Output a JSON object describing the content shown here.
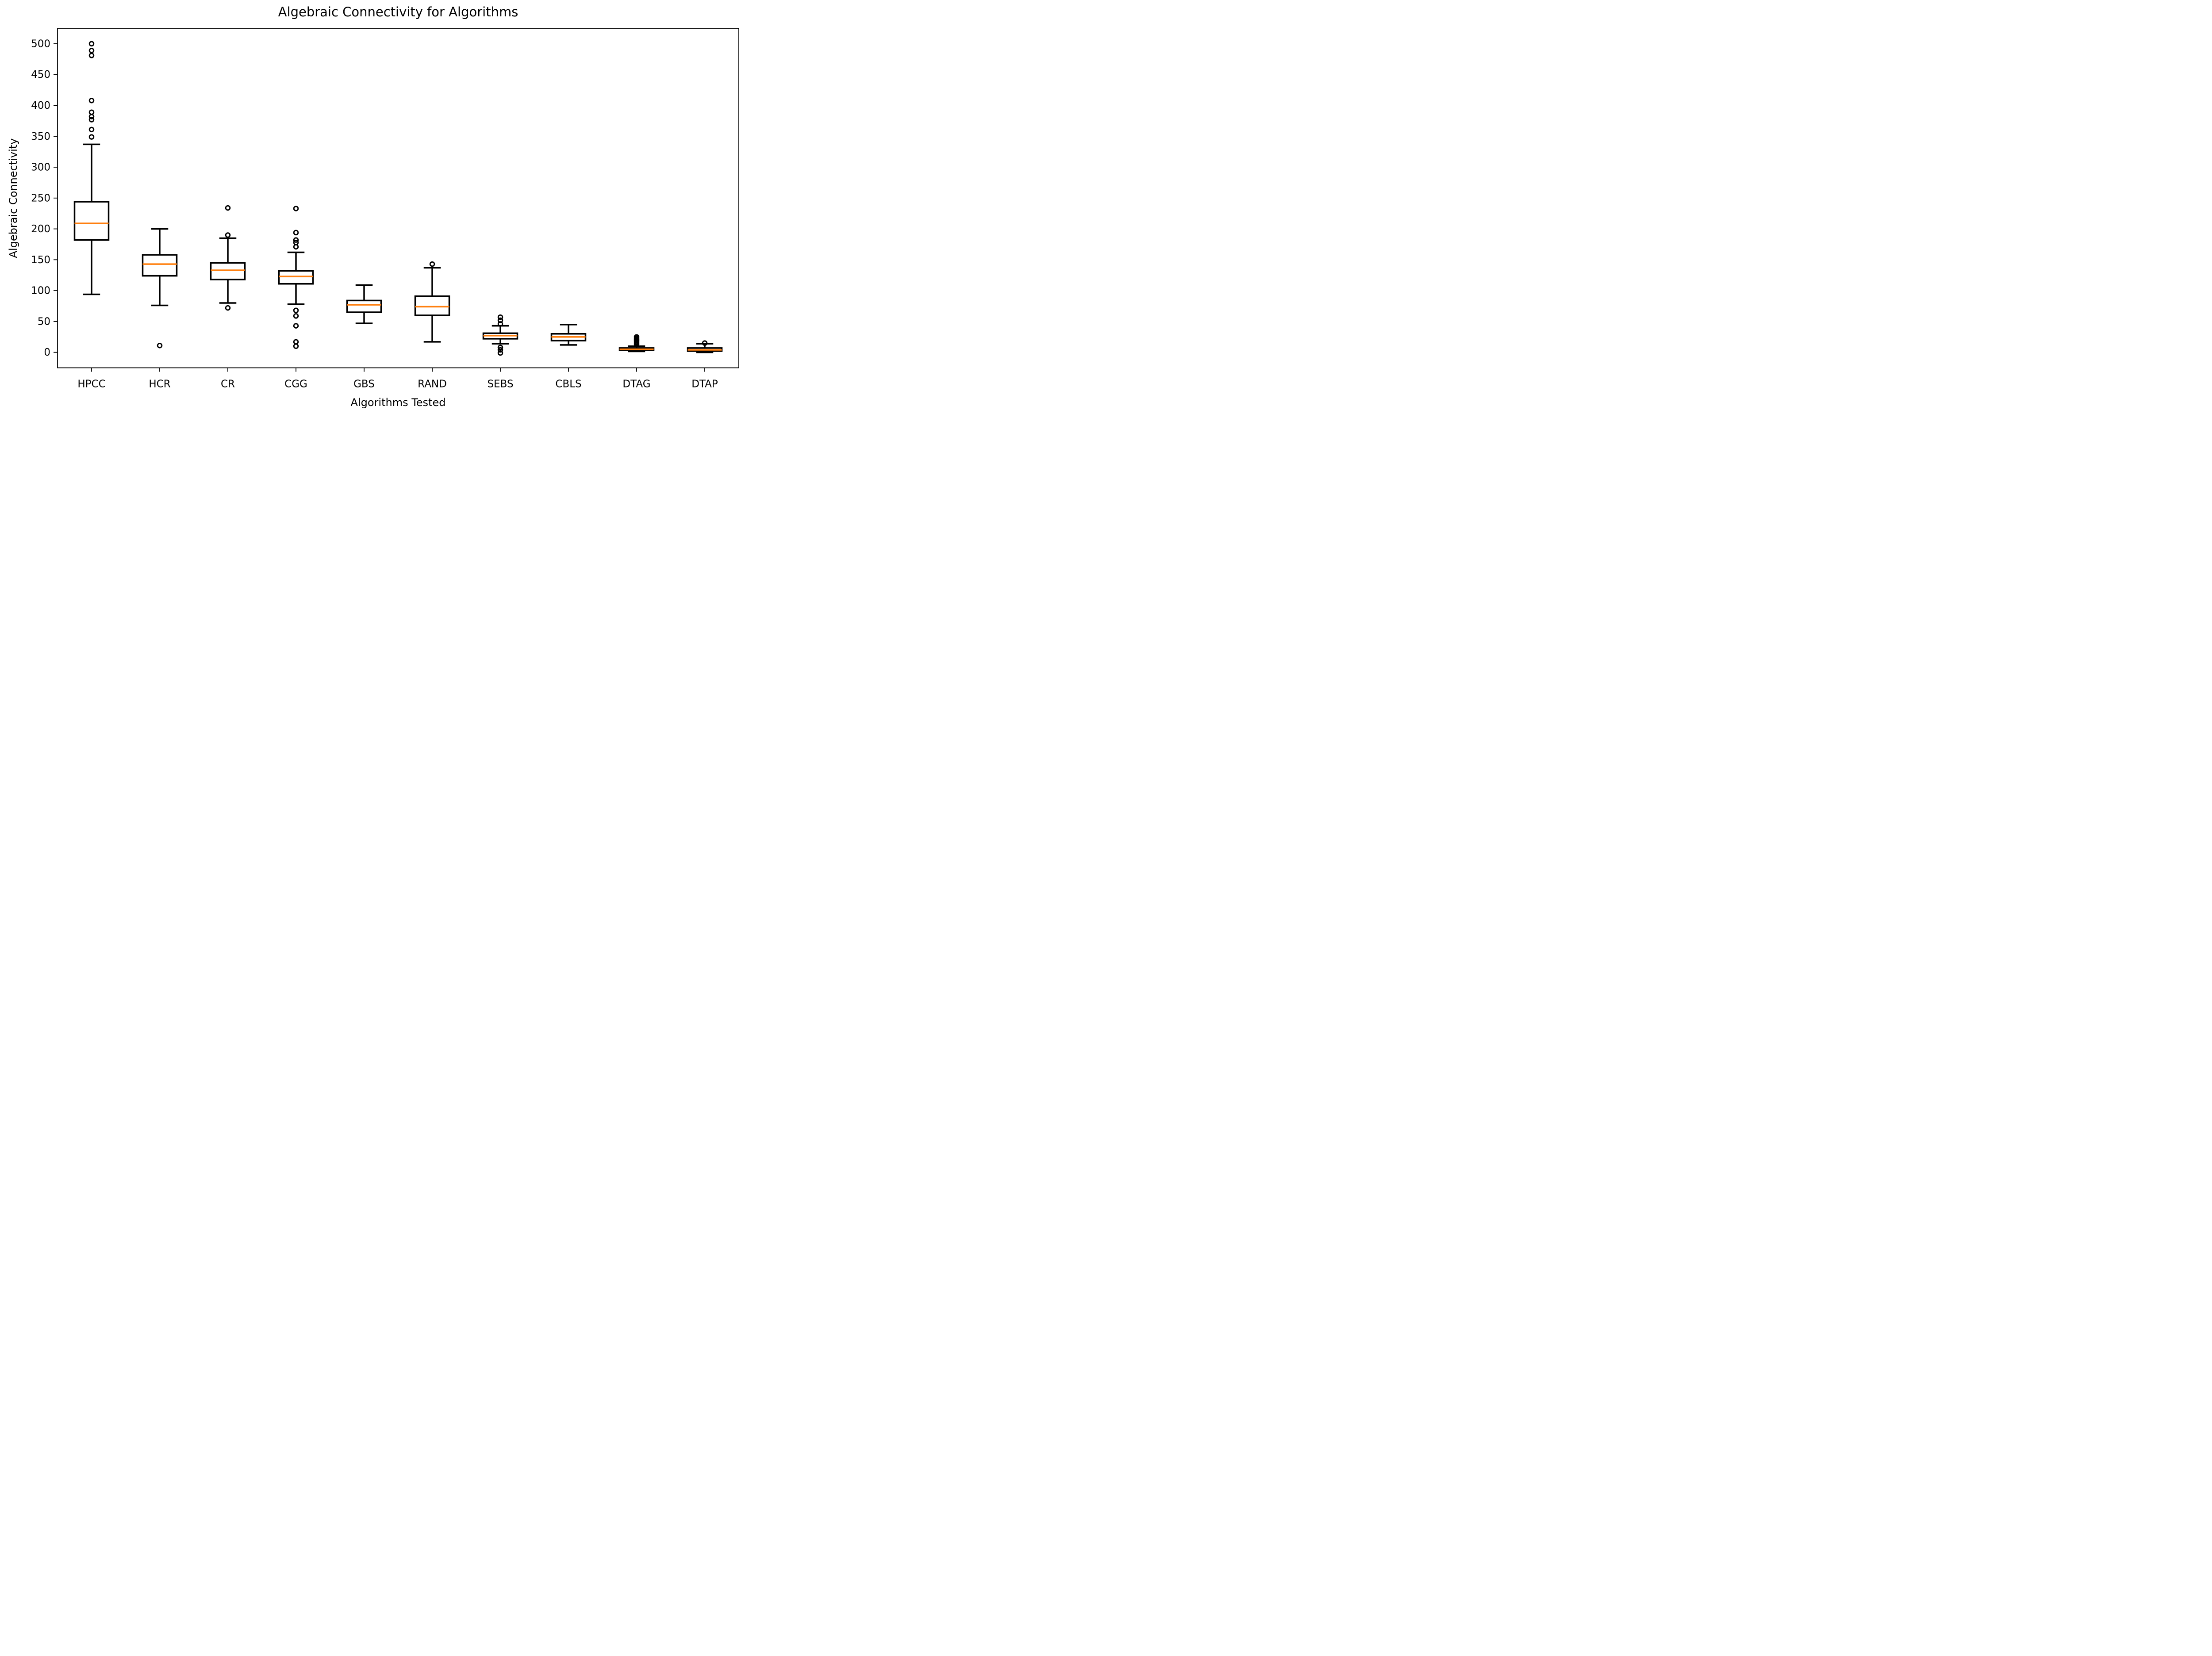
{
  "figure": {
    "title": "Algebraic Connectivity for Algorithms",
    "xlabel": "Algorithms Tested",
    "ylabel": "Algebraic Connectivity"
  },
  "colors": {
    "line": "#000000",
    "median": "#ff7f0e",
    "background": "#ffffff"
  },
  "chart_data": {
    "type": "boxplot",
    "title": "Algebraic Connectivity for Algorithms",
    "xlabel": "Algorithms Tested",
    "ylabel": "Algebraic Connectivity",
    "categories": [
      "HPCC",
      "HCR",
      "CR",
      "CGG",
      "GBS",
      "RAND",
      "SEBS",
      "CBLS",
      "DTAG",
      "DTAP"
    ],
    "yticks": [
      0,
      50,
      100,
      150,
      200,
      250,
      300,
      350,
      400,
      450,
      500
    ],
    "ylim": [
      -25,
      525
    ],
    "grid": false,
    "legend": false,
    "median_color": "#ff7f0e",
    "box_width_fraction": 0.5,
    "series": [
      {
        "name": "HPCC",
        "whislo": 94,
        "q1": 182,
        "med": 209,
        "q3": 244,
        "whishi": 337,
        "fliers": [
          500,
          489,
          481,
          408,
          389,
          382,
          377,
          361,
          349
        ]
      },
      {
        "name": "HCR",
        "whislo": 76,
        "q1": 124,
        "med": 143,
        "q3": 158,
        "whishi": 200,
        "fliers": [
          11
        ]
      },
      {
        "name": "CR",
        "whislo": 80,
        "q1": 118,
        "med": 133,
        "q3": 145,
        "whishi": 185,
        "fliers": [
          234,
          190,
          72
        ]
      },
      {
        "name": "CGG",
        "whislo": 78,
        "q1": 111,
        "med": 123,
        "q3": 132,
        "whishi": 162,
        "fliers": [
          233,
          194,
          182,
          178,
          171,
          68,
          59,
          43,
          17,
          10
        ]
      },
      {
        "name": "GBS",
        "whislo": 47,
        "q1": 65,
        "med": 77,
        "q3": 84,
        "whishi": 109,
        "fliers": []
      },
      {
        "name": "RAND",
        "whislo": 17,
        "q1": 60,
        "med": 74,
        "q3": 91,
        "whishi": 137,
        "fliers": [
          143
        ]
      },
      {
        "name": "SEBS",
        "whislo": 14,
        "q1": 22,
        "med": 27,
        "q3": 31,
        "whishi": 43,
        "fliers": [
          57,
          52,
          46,
          8,
          4,
          -1
        ]
      },
      {
        "name": "CBLS",
        "whislo": 12,
        "q1": 19,
        "med": 25,
        "q3": 30,
        "whishi": 45,
        "fliers": []
      },
      {
        "name": "DTAG",
        "whislo": 1.5,
        "q1": 3.5,
        "med": 5,
        "q3": 7,
        "whishi": 10,
        "fliers": [
          25,
          23,
          21,
          19,
          17,
          15,
          13
        ]
      },
      {
        "name": "DTAP",
        "whislo": 0,
        "q1": 2,
        "med": 4,
        "q3": 7,
        "whishi": 14,
        "fliers": [
          15
        ]
      }
    ]
  }
}
